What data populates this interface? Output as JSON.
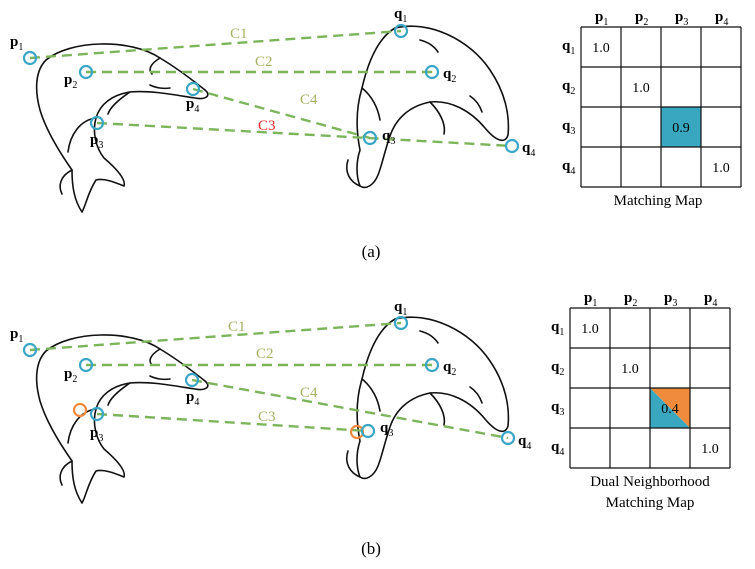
{
  "colors": {
    "keypoint_ring": "#3ba6c6",
    "keypoint_ring_dual": "#f08a3c",
    "correspondence_line": "#7cb55c",
    "match_label_default": "#a8b063",
    "match_label_wrong": "#e0302e",
    "cell_fill_high": "#3aa7c0",
    "cell_fill_dual": "#f08a3c"
  },
  "panel_a": {
    "caption": "(a)",
    "source_points": [
      "p1",
      "p2",
      "p3",
      "p4"
    ],
    "target_points": [
      "q1",
      "q2",
      "q3",
      "q4"
    ],
    "matches": [
      {
        "label": "C1",
        "from": "p1",
        "to": "q1",
        "status": "correct"
      },
      {
        "label": "C2",
        "from": "p2",
        "to": "q2",
        "status": "correct"
      },
      {
        "label": "C3",
        "from": "p3",
        "to": "q4",
        "status": "wrong"
      },
      {
        "label": "C4",
        "from": "p4",
        "to": "q3",
        "status": "correct"
      }
    ],
    "map": {
      "caption_lines": [
        "Matching Map"
      ],
      "col_headers": [
        "p1",
        "p2",
        "p3",
        "p4"
      ],
      "row_headers": [
        "q1",
        "q2",
        "q3",
        "q4"
      ],
      "cells": [
        {
          "row": 0,
          "col": 0,
          "value": "1.0",
          "fill": "none"
        },
        {
          "row": 1,
          "col": 1,
          "value": "1.0",
          "fill": "none"
        },
        {
          "row": 2,
          "col": 2,
          "value": "0.9",
          "fill": "high"
        },
        {
          "row": 3,
          "col": 3,
          "value": "1.0",
          "fill": "none"
        }
      ]
    }
  },
  "panel_b": {
    "caption": "(b)",
    "source_points": [
      "p1",
      "p2",
      "p3",
      "p4"
    ],
    "target_points": [
      "q1",
      "q2",
      "q3",
      "q4"
    ],
    "matches": [
      {
        "label": "C1",
        "from": "p1",
        "to": "q1",
        "status": "correct"
      },
      {
        "label": "C2",
        "from": "p2",
        "to": "q2",
        "status": "correct"
      },
      {
        "label": "C3",
        "from": "p3",
        "to": "q3",
        "status": "correct"
      },
      {
        "label": "C4",
        "from": "p4",
        "to": "q4",
        "status": "correct"
      }
    ],
    "map": {
      "caption_lines": [
        "Dual Neighborhood",
        "Matching Map"
      ],
      "col_headers": [
        "p1",
        "p2",
        "p3",
        "p4"
      ],
      "row_headers": [
        "q1",
        "q2",
        "q3",
        "q4"
      ],
      "cells": [
        {
          "row": 0,
          "col": 0,
          "value": "1.0",
          "fill": "none"
        },
        {
          "row": 1,
          "col": 1,
          "value": "1.0",
          "fill": "none"
        },
        {
          "row": 2,
          "col": 2,
          "value": "0.4",
          "fill": "split"
        },
        {
          "row": 3,
          "col": 3,
          "value": "1.0",
          "fill": "none"
        }
      ]
    }
  }
}
